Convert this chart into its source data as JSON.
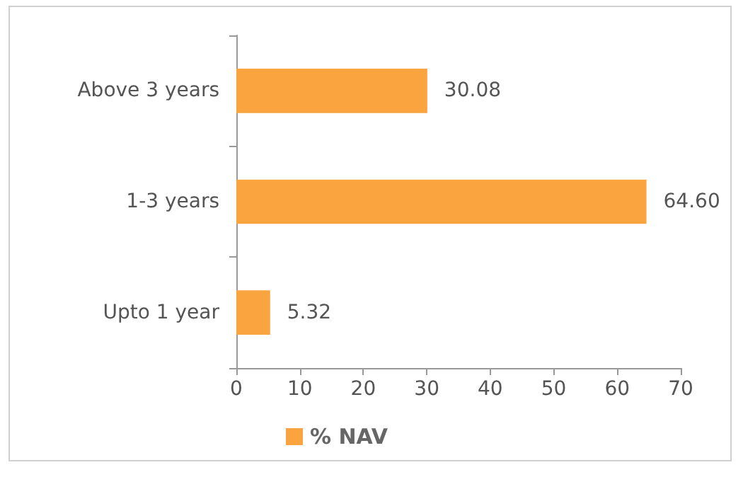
{
  "chart_data": {
    "type": "bar",
    "orientation": "horizontal",
    "categories": [
      "Above 3 years",
      "1-3 years",
      "Upto 1 year"
    ],
    "series": [
      {
        "name": "% NAV",
        "color": "#f9a43e",
        "values": [
          30.08,
          64.6,
          5.32
        ],
        "value_labels": [
          "30.08",
          "64.60",
          "5.32"
        ]
      }
    ],
    "xlim": [
      0,
      70
    ],
    "xticks": [
      0,
      10,
      20,
      30,
      40,
      50,
      60,
      70
    ],
    "grid": false,
    "legend": "bottom"
  }
}
